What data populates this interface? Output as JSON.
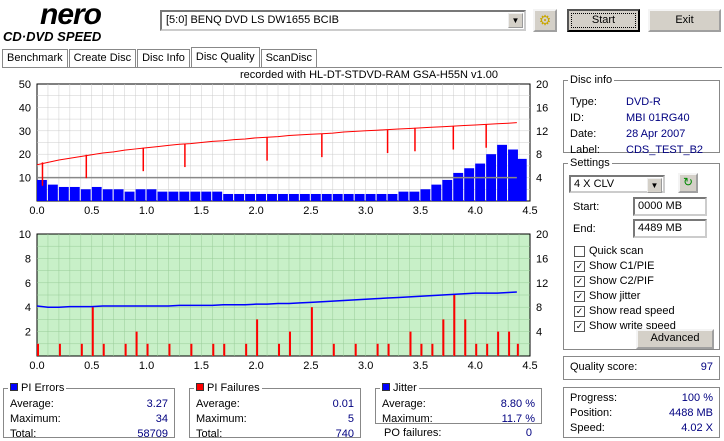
{
  "app": {
    "logo_top": "nero",
    "logo_bottom": "CD·DVD SPEED",
    "drive": "[5:0]  BENQ DVD LS DW1655 BCIB",
    "start": "Start",
    "exit": "Exit"
  },
  "tabs": [
    "Benchmark",
    "Create Disc",
    "Disc Info",
    "Disc Quality",
    "ScanDisc"
  ],
  "disc_info": {
    "title": "Disc info",
    "type_label": "Type:",
    "type": "DVD-R",
    "id_label": "ID:",
    "id": "MBI 01RG40",
    "date_label": "Date:",
    "date": "28 Apr 2007",
    "label_label": "Label:",
    "label": "CDS_TEST_B2"
  },
  "settings": {
    "title": "Settings",
    "speed": "4 X CLV",
    "start_label": "Start:",
    "start": "0000 MB",
    "end_label": "End:",
    "end": "4489 MB",
    "checks": [
      {
        "label": "Quick scan",
        "checked": false
      },
      {
        "label": "Show C1/PIE",
        "checked": true
      },
      {
        "label": "Show C2/PIF",
        "checked": true
      },
      {
        "label": "Show jitter",
        "checked": true
      },
      {
        "label": "Show read speed",
        "checked": true
      },
      {
        "label": "Show write speed",
        "checked": true
      }
    ],
    "advanced": "Advanced"
  },
  "quality": {
    "label": "Quality score:",
    "value": "97"
  },
  "progress": {
    "progress_label": "Progress:",
    "progress": "100 %",
    "position_label": "Position:",
    "position": "4488 MB",
    "speed_label": "Speed:",
    "speed": "4.02 X"
  },
  "pi_errors": {
    "title": "PI Errors",
    "color": "#0000ff",
    "avg_label": "Average:",
    "avg": "3.27",
    "max_label": "Maximum:",
    "max": "34",
    "total_label": "Total:",
    "total": "58709"
  },
  "pi_failures": {
    "title": "PI Failures",
    "color": "#ff0000",
    "avg_label": "Average:",
    "avg": "0.01",
    "max_label": "Maximum:",
    "max": "5",
    "total_label": "Total:",
    "total": "740"
  },
  "jitter": {
    "title": "Jitter",
    "color": "#0000ff",
    "avg_label": "Average:",
    "avg": "8.80 %",
    "max_label": "Maximum:",
    "max": "11.7 %",
    "po_label": "PO failures:",
    "po": "0"
  },
  "chart_data": [
    {
      "type": "bar",
      "title": "recorded with HL-DT-STDVD-RAM GSA-H55N v1.00",
      "xlim": [
        0,
        4.5
      ],
      "ylim": [
        0,
        50
      ],
      "y2lim": [
        0,
        20
      ],
      "xticks": [
        "0.0",
        "0.5",
        "1.0",
        "1.5",
        "2.0",
        "2.5",
        "3.0",
        "3.5",
        "4.0",
        "4.5"
      ],
      "yticks": [
        "10",
        "20",
        "30",
        "40",
        "50"
      ],
      "y2ticks": [
        "4",
        "8",
        "12",
        "16",
        "20"
      ],
      "x": [
        0,
        0.1,
        0.2,
        0.3,
        0.4,
        0.5,
        0.6,
        0.7,
        0.8,
        0.9,
        1.0,
        1.1,
        1.2,
        1.3,
        1.4,
        1.5,
        1.6,
        1.7,
        1.8,
        1.9,
        2.0,
        2.1,
        2.2,
        2.3,
        2.4,
        2.5,
        2.6,
        2.7,
        2.8,
        2.9,
        3.0,
        3.1,
        3.2,
        3.3,
        3.4,
        3.5,
        3.6,
        3.7,
        3.8,
        3.9,
        4.0,
        4.1,
        4.2,
        4.3,
        4.38
      ],
      "series": [
        {
          "name": "PI Errors",
          "axis": "left",
          "values": [
            9,
            7,
            6,
            6,
            5,
            6,
            5,
            5,
            4,
            5,
            5,
            4,
            4,
            4,
            4,
            4,
            4,
            3,
            3,
            3,
            3,
            3,
            3,
            3,
            3,
            3,
            3,
            3,
            3,
            3,
            3,
            3,
            3,
            4,
            4,
            5,
            7,
            9,
            12,
            14,
            16,
            20,
            24,
            22,
            18
          ]
        },
        {
          "name": "Read speed",
          "axis": "right",
          "values": [
            6.2,
            6.6,
            7.0,
            7.3,
            7.6,
            7.9,
            8.2,
            8.4,
            8.7,
            8.9,
            9.1,
            9.3,
            9.5,
            9.7,
            9.8,
            10.0,
            10.2,
            10.3,
            10.5,
            10.6,
            10.8,
            10.9,
            11.0,
            11.2,
            11.3,
            11.4,
            11.5,
            11.6,
            11.8,
            11.9,
            12.0,
            12.1,
            12.2,
            12.3,
            12.4,
            12.5,
            12.6,
            12.7,
            12.8,
            12.9,
            13.0,
            13.1,
            13.2,
            13.3,
            13.4
          ]
        },
        {
          "name": "Write speed",
          "axis": "right",
          "values": [
            4,
            4,
            4,
            4,
            4,
            4,
            4,
            4,
            4,
            4,
            4,
            4,
            4,
            4,
            4,
            4,
            4,
            4,
            4,
            4,
            4,
            4,
            4,
            4,
            4,
            4,
            4,
            4,
            4,
            4,
            4,
            4,
            4,
            4,
            4,
            4,
            4,
            4,
            4,
            4,
            4,
            4,
            4,
            4,
            4
          ]
        }
      ],
      "read_speed_dips_at": [
        0.05,
        0.45,
        0.97,
        1.35,
        2.1,
        2.6,
        3.2,
        3.45,
        3.8,
        4.1
      ]
    },
    {
      "type": "bar",
      "xlim": [
        0,
        4.5
      ],
      "ylim": [
        0,
        10
      ],
      "y2lim": [
        0,
        20
      ],
      "xticks": [
        "0.0",
        "0.5",
        "1.0",
        "1.5",
        "2.0",
        "2.5",
        "3.0",
        "3.5",
        "4.0",
        "4.5"
      ],
      "yticks": [
        "2",
        "4",
        "6",
        "8",
        "10"
      ],
      "y2ticks": [
        "4",
        "8",
        "12",
        "16",
        "20"
      ],
      "x": [
        0,
        0.1,
        0.2,
        0.3,
        0.4,
        0.5,
        0.6,
        0.7,
        0.8,
        0.9,
        1.0,
        1.1,
        1.2,
        1.3,
        1.4,
        1.5,
        1.6,
        1.7,
        1.8,
        1.9,
        2.0,
        2.1,
        2.2,
        2.3,
        2.4,
        2.5,
        2.6,
        2.7,
        2.8,
        2.9,
        3.0,
        3.1,
        3.2,
        3.3,
        3.4,
        3.5,
        3.6,
        3.7,
        3.8,
        3.9,
        4.0,
        4.1,
        4.2,
        4.3,
        4.38
      ],
      "series": [
        {
          "name": "Jitter",
          "axis": "right",
          "values": [
            8.2,
            8.0,
            8.0,
            8.1,
            8.1,
            8.1,
            8.2,
            8.2,
            8.2,
            8.2,
            8.2,
            8.2,
            8.2,
            8.3,
            8.3,
            8.3,
            8.3,
            8.4,
            8.4,
            8.4,
            8.5,
            8.5,
            8.6,
            8.6,
            8.7,
            8.8,
            8.9,
            9.0,
            9.1,
            9.2,
            9.3,
            9.4,
            9.5,
            9.6,
            9.7,
            9.8,
            9.9,
            10.0,
            10.1,
            10.2,
            10.3,
            10.3,
            10.3,
            10.4,
            10.5
          ]
        },
        {
          "name": "PI Failures",
          "axis": "left",
          "values": [
            1,
            0,
            1,
            0,
            1,
            4,
            1,
            0,
            1,
            2,
            1,
            0,
            1,
            0,
            1,
            0,
            1,
            1,
            0,
            1,
            3,
            0,
            1,
            2,
            0,
            4,
            0,
            1,
            0,
            1,
            0,
            1,
            1,
            0,
            2,
            1,
            1,
            3,
            5,
            3,
            1,
            1,
            2,
            2,
            1
          ]
        }
      ]
    }
  ]
}
